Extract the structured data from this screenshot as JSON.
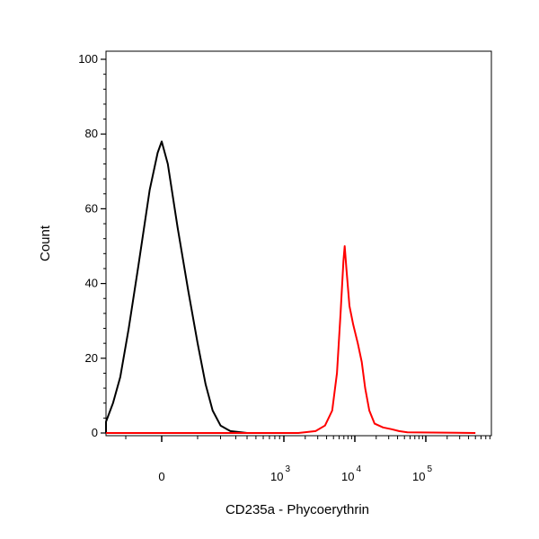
{
  "chart_data": {
    "type": "line",
    "title": "",
    "xlabel": "CD235a - Phycoerythrin",
    "ylabel": "Count",
    "x_scale": "biexponential",
    "xlim": [
      -400,
      500000
    ],
    "ylim": [
      0,
      100
    ],
    "grid": false,
    "legend": "none",
    "y_ticks": [
      {
        "value": 0,
        "label": "0"
      },
      {
        "value": 20,
        "label": "20"
      },
      {
        "value": 40,
        "label": "40"
      },
      {
        "value": 60,
        "label": "60"
      },
      {
        "value": 80,
        "label": "80"
      },
      {
        "value": 100,
        "label": "100"
      }
    ],
    "x_ticks": [
      {
        "value": 0,
        "base": "0",
        "exp": ""
      },
      {
        "value": 1000,
        "base": "10",
        "exp": "3"
      },
      {
        "value": 10000,
        "base": "10",
        "exp": "4"
      },
      {
        "value": 100000,
        "base": "10",
        "exp": "5"
      }
    ],
    "series": [
      {
        "color": "#000000",
        "points": [
          [
            -290,
            0
          ],
          [
            -230,
            1
          ],
          [
            -190,
            3
          ],
          [
            -150,
            8
          ],
          [
            -120,
            15
          ],
          [
            -90,
            28
          ],
          [
            -60,
            45
          ],
          [
            -30,
            65
          ],
          [
            -10,
            75
          ],
          [
            0,
            78
          ],
          [
            15,
            72
          ],
          [
            40,
            55
          ],
          [
            70,
            38
          ],
          [
            100,
            24
          ],
          [
            130,
            13
          ],
          [
            160,
            6
          ],
          [
            200,
            2
          ],
          [
            260,
            0.5
          ],
          [
            400,
            0
          ]
        ]
      },
      {
        "color": "#ff0000",
        "points": [
          [
            -400,
            0
          ],
          [
            1600,
            0
          ],
          [
            2800,
            0.5
          ],
          [
            3800,
            2
          ],
          [
            4800,
            6
          ],
          [
            5600,
            16
          ],
          [
            6300,
            32
          ],
          [
            6900,
            46
          ],
          [
            7200,
            50
          ],
          [
            7600,
            44
          ],
          [
            8400,
            34
          ],
          [
            9500,
            29
          ],
          [
            11000,
            24
          ],
          [
            12500,
            19
          ],
          [
            14000,
            12
          ],
          [
            16000,
            6
          ],
          [
            19000,
            2.5
          ],
          [
            25000,
            1.5
          ],
          [
            33000,
            1
          ],
          [
            42000,
            0.5
          ],
          [
            55000,
            0.2
          ],
          [
            500000,
            0
          ]
        ]
      }
    ]
  }
}
